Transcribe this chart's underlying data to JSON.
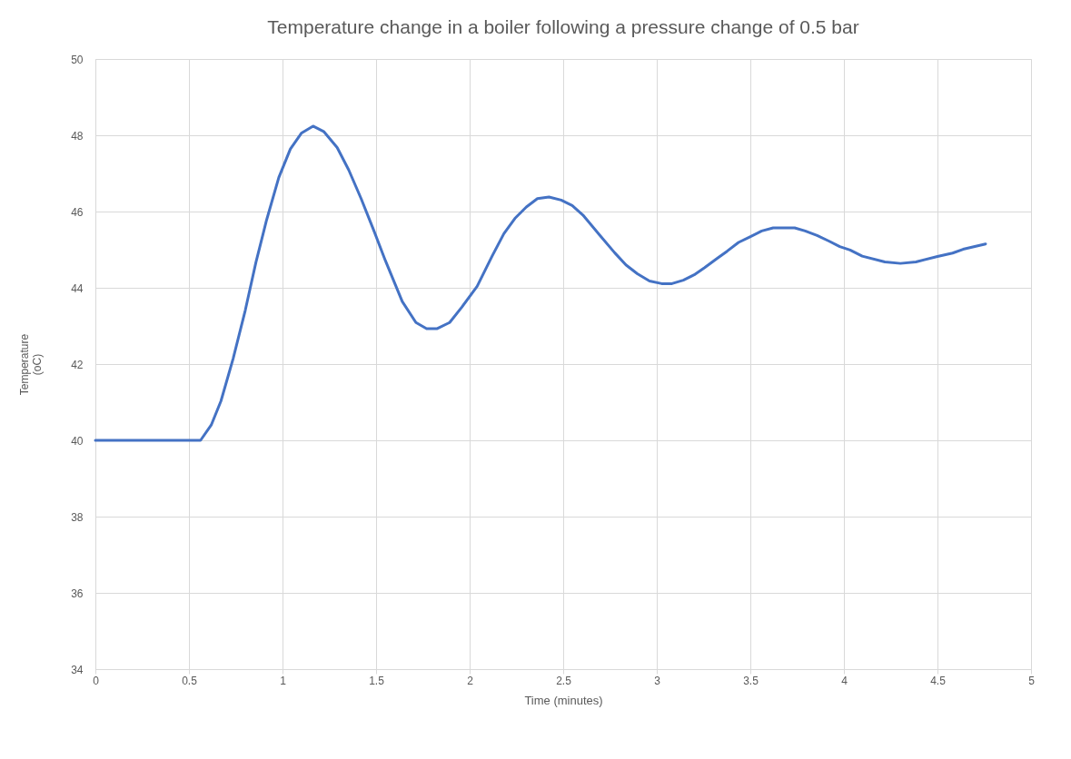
{
  "chart_data": {
    "type": "line",
    "title": "Temperature change in a boiler following a pressure change of 0.5 bar",
    "xlabel": "Time (minutes)",
    "ylabel": "Temperature (oC)",
    "x": [
      0,
      0.562,
      0.619,
      0.671,
      0.736,
      0.801,
      0.858,
      0.915,
      0.98,
      1.042,
      1.102,
      1.163,
      1.22,
      1.292,
      1.354,
      1.42,
      1.485,
      1.55,
      1.64,
      1.713,
      1.77,
      1.827,
      1.893,
      1.958,
      2.04,
      2.12,
      2.183,
      2.242,
      2.303,
      2.362,
      2.424,
      2.489,
      2.548,
      2.605,
      2.692,
      2.775,
      2.835,
      2.896,
      2.961,
      3.026,
      3.081,
      3.142,
      3.2,
      3.256,
      3.32,
      3.376,
      3.437,
      3.496,
      3.561,
      3.622,
      3.737,
      3.793,
      3.857,
      3.922,
      3.978,
      4.033,
      4.098,
      4.219,
      4.302,
      4.385,
      4.5,
      4.581,
      4.637,
      4.757
    ],
    "series": [
      {
        "color": "#4472c4",
        "values": [
          40,
          40,
          40.4,
          41.03,
          42.14,
          43.41,
          44.67,
          45.78,
          46.89,
          47.64,
          48.06,
          48.24,
          48.1,
          47.68,
          47.09,
          46.34,
          45.54,
          44.71,
          43.64,
          43.09,
          42.93,
          42.93,
          43.09,
          43.49,
          44.04,
          44.83,
          45.42,
          45.82,
          46.12,
          46.34,
          46.38,
          46.3,
          46.16,
          45.91,
          45.4,
          44.92,
          44.6,
          44.37,
          44.18,
          44.11,
          44.11,
          44.2,
          44.34,
          44.53,
          44.76,
          44.96,
          45.19,
          45.33,
          45.49,
          45.57,
          45.57,
          45.49,
          45.37,
          45.22,
          45.08,
          44.99,
          44.83,
          44.68,
          44.64,
          44.68,
          44.82,
          44.91,
          45.01,
          45.15
        ]
      }
    ],
    "xlim": [
      0,
      5
    ],
    "xticks": [
      0,
      0.5,
      1,
      1.5,
      2,
      2.5,
      3,
      3.5,
      4,
      4.5,
      5
    ],
    "ylim": [
      34,
      50
    ],
    "yticks": [
      34,
      36,
      38,
      40,
      42,
      44,
      46,
      48,
      50
    ],
    "grid": true,
    "line_style": "solid",
    "marker": "none"
  }
}
